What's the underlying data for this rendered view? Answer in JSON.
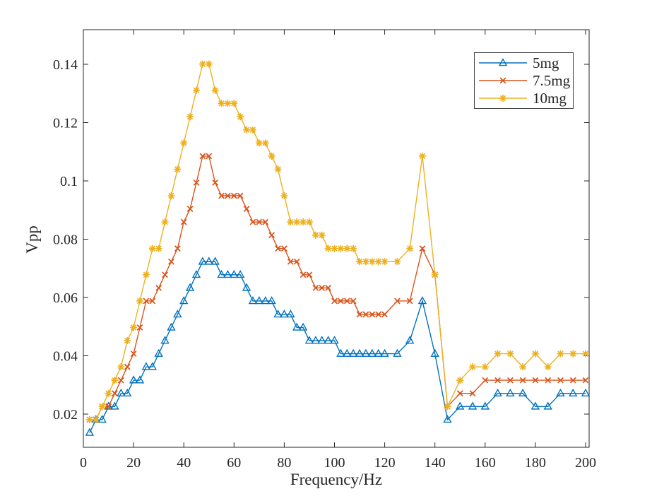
{
  "chart_data": {
    "type": "line",
    "title": "",
    "xlabel": "Frequency/Hz",
    "ylabel": "Vpp",
    "xlim": [
      0,
      200
    ],
    "ylim": [
      0.009,
      0.152
    ],
    "grid": false,
    "box": true,
    "tick_direction": "in",
    "axis_color": "#262626",
    "legend_position": "northeast",
    "x_ticks": [
      0,
      20,
      40,
      60,
      80,
      100,
      120,
      140,
      160,
      180,
      200
    ],
    "x_tick_labels": [
      "0",
      "20",
      "40",
      "60",
      "80",
      "100",
      "120",
      "140",
      "160",
      "180",
      "200"
    ],
    "y_ticks": [
      0.02,
      0.04,
      0.06,
      0.08,
      0.1,
      0.12,
      0.14
    ],
    "y_tick_labels": [
      "0.02",
      "0.04",
      "0.06",
      "0.08",
      "0.1",
      "0.12",
      "0.14"
    ],
    "x": [
      2.5,
      5,
      7.5,
      10,
      12.5,
      15,
      17.5,
      20,
      22.5,
      25,
      27.5,
      30,
      32.5,
      35,
      37.5,
      40,
      42.5,
      45,
      47.5,
      50,
      52.5,
      55,
      57.5,
      60,
      62.5,
      65,
      67.5,
      70,
      72.5,
      75,
      77.5,
      80,
      82.5,
      85,
      87.5,
      90,
      92.5,
      95,
      97.5,
      100,
      102.5,
      105,
      107.5,
      110,
      112.5,
      115,
      117.5,
      120,
      125,
      130,
      135,
      140,
      145,
      150,
      155,
      160,
      165,
      170,
      175,
      180,
      185,
      190,
      195,
      200
    ],
    "series": [
      {
        "name": "5mg",
        "color": "#0072BD",
        "marker": "triangle",
        "values": [
          0.0136,
          0.0181,
          0.0181,
          0.0226,
          0.0226,
          0.0271,
          0.0271,
          0.0316,
          0.0316,
          0.0362,
          0.0362,
          0.0407,
          0.0452,
          0.0497,
          0.0542,
          0.0588,
          0.0633,
          0.0678,
          0.0723,
          0.0723,
          0.0723,
          0.0678,
          0.0678,
          0.0678,
          0.0678,
          0.0633,
          0.0588,
          0.0588,
          0.0588,
          0.0588,
          0.0542,
          0.0542,
          0.0542,
          0.0497,
          0.0497,
          0.0452,
          0.0452,
          0.0452,
          0.0452,
          0.0452,
          0.0407,
          0.0407,
          0.0407,
          0.0407,
          0.0407,
          0.0407,
          0.0407,
          0.0407,
          0.0407,
          0.0452,
          0.0588,
          0.0407,
          0.0181,
          0.0226,
          0.0226,
          0.0226,
          0.0271,
          0.0271,
          0.0271,
          0.0226,
          0.0226,
          0.0271,
          0.0271,
          0.0271
        ]
      },
      {
        "name": "7.5mg",
        "color": "#D95319",
        "marker": "x",
        "values": [
          0.0181,
          0.0181,
          0.0226,
          0.0226,
          0.0271,
          0.0316,
          0.0362,
          0.0407,
          0.0497,
          0.0588,
          0.0588,
          0.0633,
          0.0678,
          0.0723,
          0.0768,
          0.0859,
          0.0904,
          0.0994,
          0.1085,
          0.1085,
          0.0994,
          0.0949,
          0.0949,
          0.0949,
          0.0949,
          0.0904,
          0.0859,
          0.0859,
          0.0859,
          0.0814,
          0.0768,
          0.0768,
          0.0723,
          0.0723,
          0.0678,
          0.0678,
          0.0633,
          0.0633,
          0.0633,
          0.0588,
          0.0588,
          0.0588,
          0.0588,
          0.0542,
          0.0542,
          0.0542,
          0.0542,
          0.0542,
          0.0588,
          0.0588,
          0.0768,
          0.0678,
          0.0226,
          0.0271,
          0.0271,
          0.0316,
          0.0316,
          0.0316,
          0.0316,
          0.0316,
          0.0316,
          0.0316,
          0.0316,
          0.0316
        ]
      },
      {
        "name": "10mg",
        "color": "#EDB120",
        "marker": "asterisk",
        "values": [
          0.0181,
          0.0181,
          0.0226,
          0.0271,
          0.0316,
          0.0362,
          0.0452,
          0.0497,
          0.0588,
          0.0678,
          0.0768,
          0.0768,
          0.0859,
          0.0949,
          0.104,
          0.113,
          0.122,
          0.1311,
          0.1401,
          0.1401,
          0.1311,
          0.1266,
          0.1266,
          0.1266,
          0.122,
          0.1175,
          0.1175,
          0.113,
          0.113,
          0.1085,
          0.104,
          0.0949,
          0.0859,
          0.0859,
          0.0859,
          0.0859,
          0.0814,
          0.0814,
          0.0768,
          0.0768,
          0.0768,
          0.0768,
          0.0768,
          0.0723,
          0.0723,
          0.0723,
          0.0723,
          0.0723,
          0.0723,
          0.0768,
          0.1085,
          0.0678,
          0.0226,
          0.0316,
          0.0362,
          0.0362,
          0.0407,
          0.0407,
          0.0362,
          0.0407,
          0.0362,
          0.0407,
          0.0407,
          0.0407
        ]
      }
    ]
  }
}
